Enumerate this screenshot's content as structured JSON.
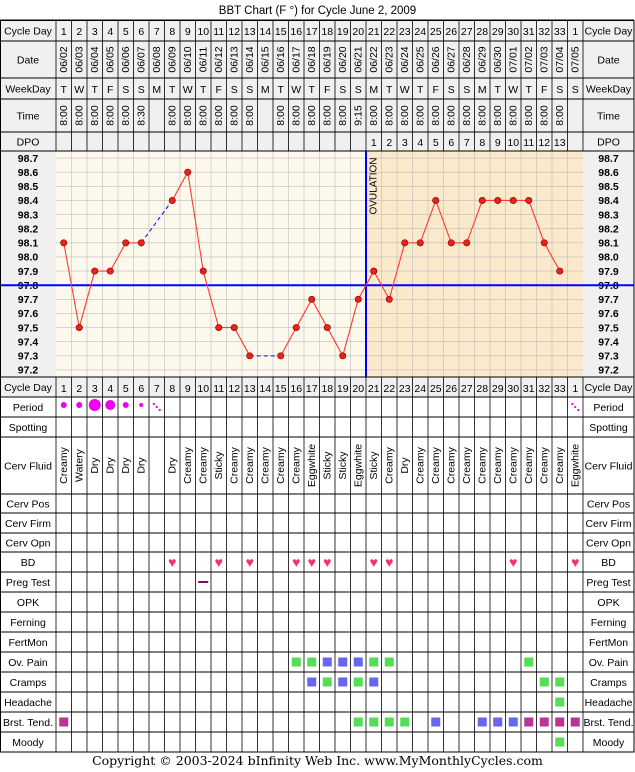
{
  "title": "BBT Chart (F °) for Cycle June 2, 2009",
  "copyright": "Copyright © 2003-2024 bInfinity Web Inc.    www.MyMonthlyCycles.com",
  "row_labels": {
    "cycle_day": "Cycle Day",
    "date": "Date",
    "weekday": "WeekDay",
    "time": "Time",
    "dpo": "DPO",
    "period": "Period",
    "spotting": "Spotting",
    "cerv_fluid": "Cerv Fluid",
    "cerv_pos": "Cerv Pos",
    "cerv_firm": "Cerv Firm",
    "cerv_opn": "Cerv Opn",
    "bd": "BD",
    "preg_test": "Preg Test",
    "opk": "OPK",
    "ferning": "Ferning",
    "fertmon": "FertMon",
    "ov_pain": "Ov. Pain",
    "cramps": "Cramps",
    "headache": "Headache",
    "brst_tend": "Brst. Tend.",
    "moody": "Moody"
  },
  "ovulation_label": "OVULATION",
  "colors": {
    "border": "#000000",
    "header_bg": "#f0f0f0",
    "pre_ov_bg": "#fcf9ec",
    "post_ov_bg": "#fbe9cb",
    "grid": "#bdbdbd",
    "temp_line": "#ff3b30",
    "temp_point": "#e8221a",
    "coverline": "#0000ff",
    "ovulation_line": "#0000ff",
    "period": "#ee00ee",
    "bd_heart": "#ee3377",
    "preg_test": "#800080",
    "symptom_green": "#55dd55",
    "symptom_blue": "#6666ee",
    "symptom_purple": "#bb3399"
  },
  "cycle_days": [
    "1",
    "2",
    "3",
    "4",
    "5",
    "6",
    "7",
    "8",
    "9",
    "10",
    "11",
    "12",
    "13",
    "14",
    "15",
    "16",
    "17",
    "18",
    "19",
    "20",
    "21",
    "22",
    "23",
    "24",
    "25",
    "26",
    "27",
    "28",
    "29",
    "30",
    "31",
    "32",
    "33",
    "1"
  ],
  "dates": [
    "06/02",
    "06/03",
    "06/04",
    "06/05",
    "06/06",
    "06/07",
    "06/08",
    "06/09",
    "06/10",
    "06/11",
    "06/12",
    "06/13",
    "06/14",
    "06/15",
    "06/16",
    "06/17",
    "06/18",
    "06/19",
    "06/20",
    "06/21",
    "06/22",
    "06/23",
    "06/24",
    "06/25",
    "06/26",
    "06/27",
    "06/28",
    "06/29",
    "06/30",
    "07/01",
    "07/02",
    "07/03",
    "07/04",
    "07/05"
  ],
  "weekdays": [
    "T",
    "W",
    "T",
    "F",
    "S",
    "S",
    "M",
    "T",
    "W",
    "T",
    "F",
    "S",
    "S",
    "M",
    "T",
    "W",
    "T",
    "F",
    "S",
    "S",
    "M",
    "T",
    "W",
    "T",
    "F",
    "S",
    "S",
    "M",
    "T",
    "W",
    "T",
    "F",
    "S",
    "S"
  ],
  "times": [
    "8:00",
    "8:00",
    "8:00",
    "8:00",
    "8:00",
    "8:30",
    "",
    "8:00",
    "8:00",
    "8:00",
    "8:00",
    "8:00",
    "8:00",
    "",
    "8:00",
    "8:00",
    "8:00",
    "8:00",
    "8:00",
    "9:15",
    "8:00",
    "8:00",
    "8:00",
    "8:00",
    "8:00",
    "8:00",
    "8:00",
    "8:00",
    "8:00",
    "8:00",
    "8:00",
    "8:00",
    "8:00",
    ""
  ],
  "dpo": [
    "",
    "",
    "",
    "",
    "",
    "",
    "",
    "",
    "",
    "",
    "",
    "",
    "",
    "",
    "",
    "",
    "",
    "",
    "",
    "",
    "1",
    "2",
    "3",
    "4",
    "5",
    "6",
    "7",
    "8",
    "9",
    "10",
    "11",
    "12",
    "13",
    ""
  ],
  "cerv_fluid": [
    "Creamy",
    "Watery",
    "Dry",
    "Dry",
    "Dry",
    "Dry",
    "",
    "Dry",
    "Creamy",
    "Creamy",
    "Sticky",
    "Creamy",
    "Creamy",
    "Creamy",
    "Creamy",
    "Creamy",
    "Eggwhite",
    "Sticky",
    "Sticky",
    "Eggwhite",
    "Sticky",
    "Creamy",
    "Dry",
    "Creamy",
    "Creamy",
    "Creamy",
    "Creamy",
    "Creamy",
    "Creamy",
    "Creamy",
    "Creamy",
    "Creamy",
    "Creamy",
    "Eggwhite"
  ],
  "period": [
    3,
    3,
    6,
    5,
    3,
    2,
    1,
    0,
    0,
    0,
    0,
    0,
    0,
    0,
    0,
    0,
    0,
    0,
    0,
    0,
    0,
    0,
    0,
    0,
    0,
    0,
    0,
    0,
    0,
    0,
    0,
    0,
    0,
    1
  ],
  "bd": [
    0,
    0,
    0,
    0,
    0,
    0,
    0,
    1,
    0,
    0,
    1,
    0,
    1,
    0,
    0,
    1,
    1,
    1,
    0,
    0,
    1,
    1,
    0,
    0,
    0,
    0,
    0,
    0,
    0,
    1,
    0,
    0,
    0,
    1
  ],
  "preg_test": [
    0,
    0,
    0,
    0,
    0,
    0,
    0,
    0,
    0,
    1,
    0,
    0,
    0,
    0,
    0,
    0,
    0,
    0,
    0,
    0,
    0,
    0,
    0,
    0,
    0,
    0,
    0,
    0,
    0,
    0,
    0,
    0,
    0,
    0
  ],
  "ov_pain": [
    "",
    "",
    "",
    "",
    "",
    "",
    "",
    "",
    "",
    "",
    "",
    "",
    "",
    "",
    "",
    "g",
    "g",
    "b",
    "b",
    "b",
    "g",
    "g",
    "",
    "",
    "",
    "",
    "",
    "",
    "",
    "",
    "g",
    "",
    "",
    ""
  ],
  "cramps": [
    "",
    "",
    "",
    "",
    "",
    "",
    "",
    "",
    "",
    "",
    "",
    "",
    "",
    "",
    "",
    "",
    "b",
    "g",
    "b",
    "g",
    "b",
    "",
    "",
    "",
    "",
    "",
    "",
    "",
    "",
    "",
    "",
    "g",
    "g",
    ""
  ],
  "headache": [
    "",
    "",
    "",
    "",
    "",
    "",
    "",
    "",
    "",
    "",
    "",
    "",
    "",
    "",
    "",
    "",
    "",
    "",
    "",
    "",
    "",
    "",
    "",
    "",
    "",
    "",
    "",
    "",
    "",
    "",
    "",
    "",
    "g",
    ""
  ],
  "brst_tend": [
    "p",
    "",
    "",
    "",
    "",
    "",
    "",
    "",
    "",
    "",
    "",
    "",
    "",
    "",
    "",
    "",
    "",
    "",
    "",
    "g",
    "g",
    "g",
    "g",
    "",
    "b",
    "",
    "",
    "b",
    "b",
    "b",
    "p",
    "p",
    "p",
    "p"
  ],
  "moody": [
    "",
    "",
    "",
    "",
    "",
    "",
    "",
    "",
    "",
    "",
    "",
    "",
    "",
    "",
    "",
    "",
    "",
    "",
    "",
    "",
    "",
    "",
    "",
    "",
    "",
    "",
    "",
    "",
    "",
    "",
    "",
    "",
    "g",
    ""
  ],
  "chart_data": {
    "type": "line",
    "title": "BBT Chart (F °) for Cycle June 2, 2009",
    "x": [
      "1",
      "2",
      "3",
      "4",
      "5",
      "6",
      "7",
      "8",
      "9",
      "10",
      "11",
      "12",
      "13",
      "14",
      "15",
      "16",
      "17",
      "18",
      "19",
      "20",
      "21",
      "22",
      "23",
      "24",
      "25",
      "26",
      "27",
      "28",
      "29",
      "30",
      "31",
      "32",
      "33",
      "1"
    ],
    "ylim": [
      97.2,
      98.7
    ],
    "y_ticks": [
      "98.7",
      "98.6",
      "98.5",
      "98.4",
      "98.3",
      "98.2",
      "98.1",
      "98.0",
      "97.9",
      "97.8",
      "97.7",
      "97.6",
      "97.5",
      "97.4",
      "97.3",
      "97.2"
    ],
    "temps": [
      98.1,
      97.5,
      97.9,
      97.9,
      98.1,
      98.1,
      null,
      98.4,
      98.6,
      97.9,
      97.5,
      97.5,
      97.3,
      null,
      97.3,
      97.5,
      97.7,
      97.5,
      97.3,
      97.7,
      97.9,
      97.7,
      98.1,
      98.1,
      98.4,
      98.1,
      98.1,
      98.4,
      98.4,
      98.4,
      98.4,
      98.1,
      97.9,
      null
    ],
    "coverline": 97.8,
    "ovulation_after_day_index": 19
  }
}
